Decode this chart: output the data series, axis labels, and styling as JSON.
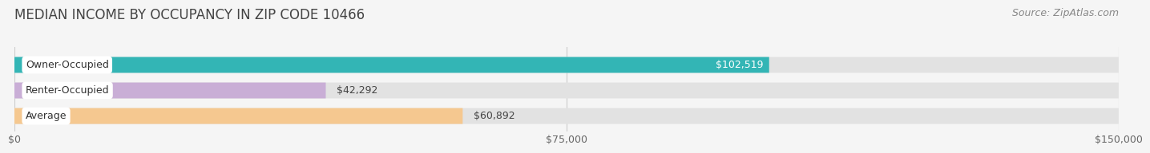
{
  "title": "MEDIAN INCOME BY OCCUPANCY IN ZIP CODE 10466",
  "source": "Source: ZipAtlas.com",
  "categories": [
    "Owner-Occupied",
    "Renter-Occupied",
    "Average"
  ],
  "values": [
    102519,
    42292,
    60892
  ],
  "bar_colors": [
    "#33b5b5",
    "#c9aed6",
    "#f5c890"
  ],
  "label_colors": [
    "#ffffff",
    "#555555",
    "#555555"
  ],
  "value_label_inside": [
    true,
    false,
    false
  ],
  "xlim": [
    0,
    150000
  ],
  "xtick_labels": [
    "$0",
    "$75,000",
    "$150,000"
  ],
  "xtick_vals": [
    0,
    75000,
    150000
  ],
  "value_labels": [
    "$102,519",
    "$42,292",
    "$60,892"
  ],
  "background_color": "#f5f5f5",
  "bar_bg_color": "#e2e2e2",
  "title_fontsize": 12,
  "source_fontsize": 9,
  "label_fontsize": 9,
  "value_fontsize": 9,
  "tick_fontsize": 9,
  "bar_height": 0.62,
  "bar_gap": 0.22
}
